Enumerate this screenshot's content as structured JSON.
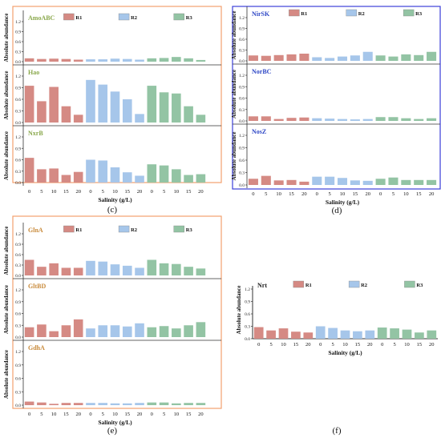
{
  "colors": {
    "R1": "#d58a84",
    "R2": "#a6c6ea",
    "R3": "#93c4a4",
    "frame_orange": "#f2a06f",
    "frame_blue": "#3c3fd8",
    "label_olive": "#8aa84c",
    "label_blue": "#2f48c6",
    "label_orange": "#c98b3c",
    "label_dark": "#222222"
  },
  "chart_data": [
    {
      "id": "c",
      "type": "bar",
      "caption": "(c)",
      "xlabel": "Salinity  (g/L)",
      "ylabel": "Absolute abundance",
      "categories": [
        "0",
        "5",
        "10",
        "15",
        "20",
        "0",
        "5",
        "10",
        "15",
        "20",
        "0",
        "5",
        "10",
        "15",
        "20"
      ],
      "legend": [
        "R1",
        "R2",
        "R3"
      ],
      "subplots": [
        {
          "label": "AmoABC",
          "ylim": [
            0,
            1.2
          ],
          "yticks": [
            "0.0",
            "0.3",
            "0.6",
            "0.9",
            "1.2"
          ],
          "values": [
            0.1,
            0.08,
            0.09,
            0.08,
            0.06,
            0.07,
            0.07,
            0.09,
            0.08,
            0.06,
            0.1,
            0.11,
            0.14,
            0.1,
            0.05
          ]
        },
        {
          "label": "Hao",
          "ylim": [
            0,
            1.2
          ],
          "yticks": [
            "0.0",
            "0.3",
            "0.6",
            "0.9",
            "1.2"
          ],
          "values": [
            0.95,
            0.55,
            0.92,
            0.42,
            0.2,
            1.1,
            0.98,
            0.8,
            0.6,
            0.22,
            0.95,
            0.78,
            0.75,
            0.42,
            0.2
          ]
        },
        {
          "label": "NxrB",
          "ylim": [
            0,
            1.2
          ],
          "yticks": [
            "0.0",
            "0.3",
            "0.6",
            "0.9",
            "1.2"
          ],
          "values": [
            0.65,
            0.35,
            0.37,
            0.2,
            0.28,
            0.6,
            0.58,
            0.4,
            0.27,
            0.18,
            0.48,
            0.45,
            0.35,
            0.2,
            0.22
          ]
        }
      ]
    },
    {
      "id": "d",
      "type": "bar",
      "caption": "(d)",
      "xlabel": "Salinity  (g/L)",
      "ylabel": "Absolute abundance",
      "categories": [
        "0",
        "5",
        "10",
        "15",
        "20",
        "0",
        "5",
        "10",
        "15",
        "20",
        "0",
        "5",
        "10",
        "15",
        "20"
      ],
      "legend": [
        "R1",
        "R2",
        "R3"
      ],
      "subplots": [
        {
          "label": "NirSK",
          "ylim": [
            0,
            1.2
          ],
          "yticks": [
            "0.0",
            "0.3",
            "0.6",
            "0.9",
            "1.2"
          ],
          "values": [
            0.15,
            0.14,
            0.16,
            0.18,
            0.2,
            0.1,
            0.08,
            0.12,
            0.15,
            0.25,
            0.15,
            0.12,
            0.18,
            0.16,
            0.25
          ]
        },
        {
          "label": "NorBC",
          "ylim": [
            0,
            1.2
          ],
          "yticks": [
            "0.0",
            "0.3",
            "0.6",
            "0.9",
            "1.2"
          ],
          "values": [
            0.12,
            0.12,
            0.05,
            0.08,
            0.09,
            0.07,
            0.06,
            0.05,
            0.04,
            0.05,
            0.1,
            0.1,
            0.07,
            0.05,
            0.07
          ]
        },
        {
          "label": "NosZ",
          "ylim": [
            0,
            1.2
          ],
          "yticks": [
            "0.0",
            "0.3",
            "0.6",
            "0.9",
            "1.2"
          ],
          "values": [
            0.15,
            0.22,
            0.11,
            0.12,
            0.08,
            0.2,
            0.2,
            0.17,
            0.11,
            0.1,
            0.15,
            0.18,
            0.12,
            0.12,
            0.12
          ]
        }
      ]
    },
    {
      "id": "e",
      "type": "bar",
      "caption": "(e)",
      "xlabel": "Salinity  (g/L)",
      "ylabel": "Absolute abundance",
      "categories": [
        "0",
        "5",
        "10",
        "15",
        "20",
        "0",
        "5",
        "10",
        "15",
        "20",
        "0",
        "5",
        "10",
        "15",
        "20"
      ],
      "legend": [
        "R1",
        "R2",
        "R3"
      ],
      "subplots": [
        {
          "label": "GlnA",
          "ylim": [
            0,
            1.2
          ],
          "yticks": [
            "0.0",
            "0.3",
            "0.6",
            "0.9",
            "1.2"
          ],
          "values": [
            0.45,
            0.25,
            0.35,
            0.22,
            0.22,
            0.42,
            0.4,
            0.32,
            0.28,
            0.22,
            0.45,
            0.35,
            0.33,
            0.25,
            0.2
          ]
        },
        {
          "label": "GltBD",
          "ylim": [
            0,
            1.2
          ],
          "yticks": [
            "0.0",
            "0.3",
            "0.6",
            "0.9",
            "1.2"
          ],
          "values": [
            0.25,
            0.32,
            0.15,
            0.3,
            0.45,
            0.22,
            0.3,
            0.3,
            0.27,
            0.35,
            0.25,
            0.28,
            0.22,
            0.3,
            0.38
          ]
        },
        {
          "label": "GdhA",
          "ylim": [
            0,
            1.2
          ],
          "yticks": [
            "0.0",
            "0.3",
            "0.6",
            "0.9",
            "1.2"
          ],
          "values": [
            0.08,
            0.06,
            0.03,
            0.05,
            0.05,
            0.05,
            0.05,
            0.04,
            0.04,
            0.05,
            0.06,
            0.06,
            0.04,
            0.05,
            0.05
          ]
        }
      ]
    },
    {
      "id": "f",
      "type": "bar",
      "caption": "(f)",
      "xlabel": "Salinity  (g/L)",
      "ylabel": "Absolute abundance",
      "categories": [
        "0",
        "5",
        "10",
        "15",
        "20",
        "0",
        "5",
        "10",
        "15",
        "20",
        "0",
        "5",
        "10",
        "15",
        "20"
      ],
      "legend": [
        "R1",
        "R2",
        "R3"
      ],
      "subplots": [
        {
          "label": "Nrt",
          "ylim": [
            0,
            1.2
          ],
          "yticks": [
            "0.0",
            "0.3",
            "0.6",
            "0.9",
            "1.2"
          ],
          "values": [
            0.28,
            0.2,
            0.25,
            0.17,
            0.15,
            0.3,
            0.26,
            0.2,
            0.18,
            0.2,
            0.27,
            0.25,
            0.22,
            0.15,
            0.2
          ]
        }
      ]
    }
  ]
}
